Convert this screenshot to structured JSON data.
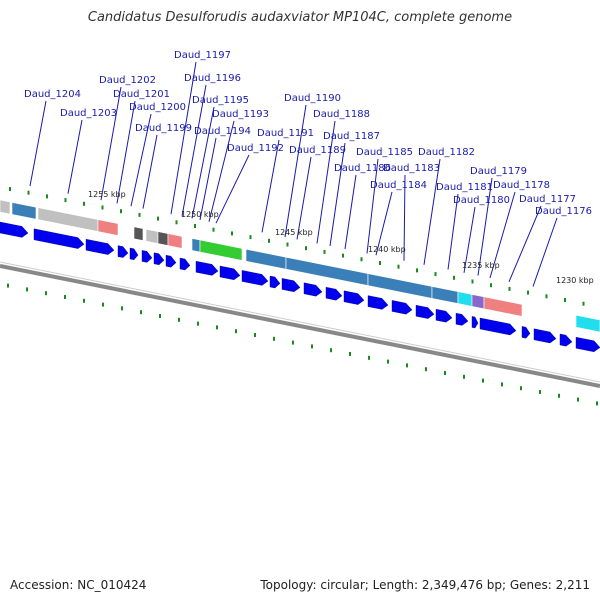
{
  "title": "Candidatus Desulforudis audaxviator MP104C, complete genome",
  "footer": {
    "accession": "Accession: NC_010424",
    "stats": "Topology: circular; Length: 2,349,476 bp; Genes: 2,211"
  },
  "gene_labels": [
    "Daud_1204",
    "Daud_1203",
    "Daud_1202",
    "Daud_1201",
    "Daud_1200",
    "Daud_1199",
    "Daud_1197",
    "Daud_1196",
    "Daud_1195",
    "Daud_1194",
    "Daud_1193",
    "Daud_1192",
    "Daud_1191",
    "Daud_1190",
    "Daud_1189",
    "Daud_1188",
    "Daud_1187",
    "Daud_1186",
    "Daud_1185",
    "Daud_1184",
    "Daud_1183",
    "Daud_1182",
    "Daud_1181",
    "Daud_1180",
    "Daud_1179",
    "Daud_1178",
    "Daud_1177",
    "Daud_1176"
  ],
  "position_labels": [
    "1255 kbp",
    "1250 kbp",
    "1245 kbp",
    "1240 kbp",
    "1235 kbp",
    "1230 kbp"
  ],
  "colors": {
    "forward_gene": "#0000ee",
    "backbone": "#888888",
    "tick": "#1a8a1a",
    "label": "#1a1aaa",
    "cog_blue": "#3b7fb8",
    "cog_green": "#33cc33",
    "cog_pink": "#f08080",
    "cog_cyan": "#22ddee",
    "cog_gray": "#c0c0c0",
    "cog_dark": "#555555",
    "cog_purple": "#8866cc"
  }
}
